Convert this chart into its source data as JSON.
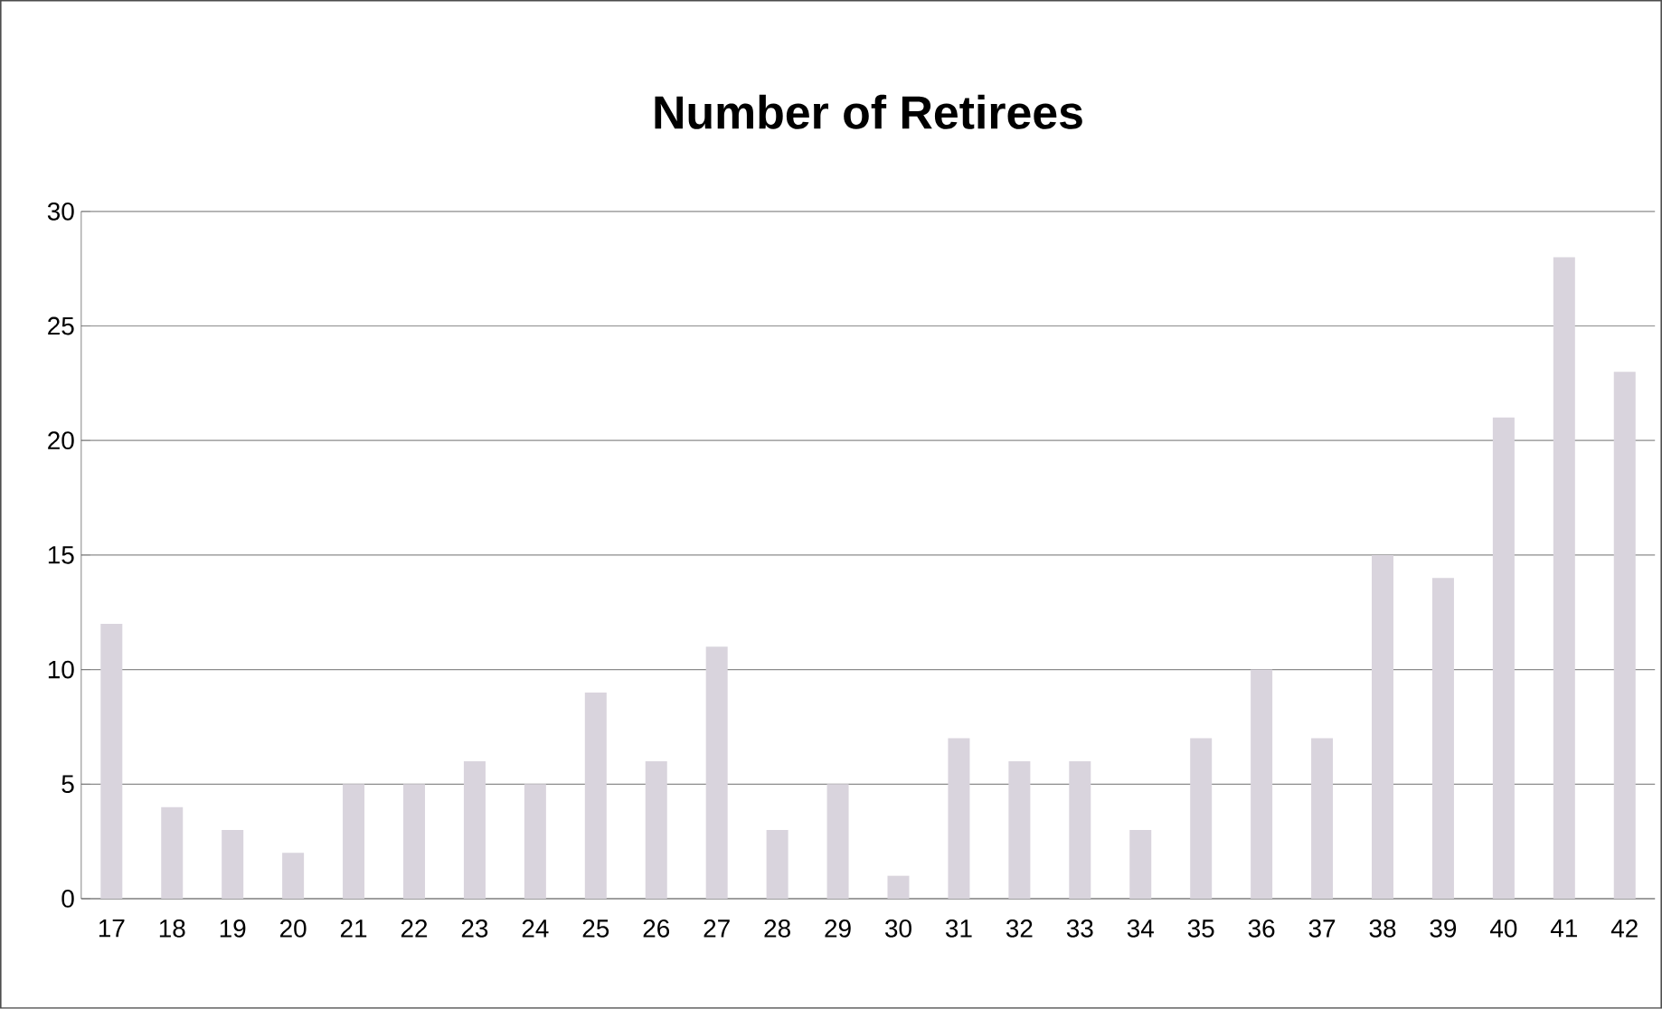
{
  "chart_data": {
    "type": "bar",
    "title": "Number of Retirees",
    "categories": [
      "17",
      "18",
      "19",
      "20",
      "21",
      "22",
      "23",
      "24",
      "25",
      "26",
      "27",
      "28",
      "29",
      "30",
      "31",
      "32",
      "33",
      "34",
      "35",
      "36",
      "37",
      "38",
      "39",
      "40",
      "41",
      "42"
    ],
    "values": [
      12,
      4,
      3,
      2,
      5,
      5,
      6,
      5,
      9,
      6,
      11,
      3,
      5,
      1,
      7,
      6,
      6,
      3,
      7,
      10,
      7,
      15,
      14,
      21,
      28,
      23
    ],
    "color": "#d9d4dd",
    "ylim": [
      0,
      30
    ],
    "yticks": [
      0,
      5,
      10,
      15,
      20,
      25,
      30
    ],
    "grid": "y"
  }
}
